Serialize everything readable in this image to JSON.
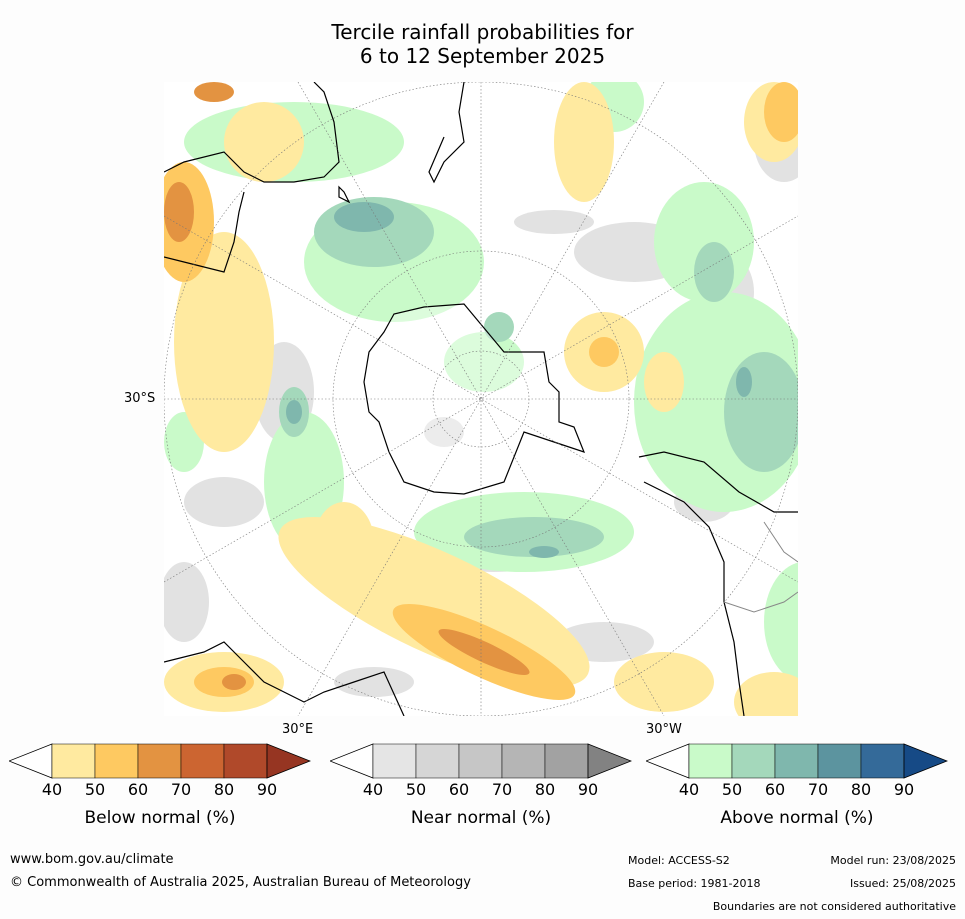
{
  "title": {
    "line1": "Tercile rainfall probabilities for",
    "line2": "6 to 12 September 2025"
  },
  "map_labels": {
    "lat": "30°S",
    "lon_east": "30°E",
    "lon_west": "30°W"
  },
  "colorbars": [
    {
      "id": "below",
      "title": "Below normal (%)",
      "ticks": [
        "40",
        "50",
        "60",
        "70",
        "80",
        "90"
      ],
      "colors": [
        "#ffeaa0",
        "#fec961",
        "#e39341",
        "#cc6531",
        "#b0492a",
        "#963522"
      ],
      "low_color": "#ffffff"
    },
    {
      "id": "near",
      "title": "Near normal (%)",
      "ticks": [
        "40",
        "50",
        "60",
        "70",
        "80",
        "90"
      ],
      "colors": [
        "#e5e5e5",
        "#d6d6d6",
        "#c6c6c6",
        "#b5b5b5",
        "#a2a2a2",
        "#828282"
      ],
      "low_color": "#ffffff"
    },
    {
      "id": "above",
      "title": "Above normal (%)",
      "ticks": [
        "40",
        "50",
        "60",
        "70",
        "80",
        "90"
      ],
      "colors": [
        "#c9fac9",
        "#a4d8bb",
        "#7fb7ad",
        "#5c949f",
        "#346a99",
        "#164a86"
      ],
      "low_color": "#ffffff"
    }
  ],
  "footer": {
    "url": "www.bom.gov.au/climate",
    "copyright": "© Commonwealth of Australia 2025, Australian Bureau of Meteorology",
    "model": "Model: ACCESS-S2",
    "model_run": "Model run: 23/08/2025",
    "base_period": "Base period: 1981-2018",
    "issued": "Issued: 25/08/2025",
    "disclaimer": "Boundaries are not considered authoritative"
  }
}
